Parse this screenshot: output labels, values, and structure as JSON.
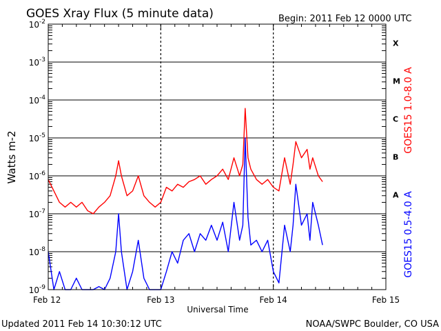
{
  "title": "GOES Xray Flux (5 minute data)",
  "begin": "Begin:  2011 Feb 12 0000 UTC",
  "updated": "Updated 2011 Feb 14 10:30:12 UTC",
  "credit": "NOAA/SWPC Boulder, CO USA",
  "colors": {
    "long_channel": "#ff0000",
    "short_channel": "#0000ff",
    "axes": "#000000"
  },
  "chart_data": {
    "type": "line",
    "title": "GOES Xray Flux (5 minute data)",
    "xlabel": "Universal Time",
    "ylabel": "Watts m-2",
    "y_scale": "log",
    "ylim": [
      1e-09,
      0.01
    ],
    "xlim": [
      "2011-02-12 00:00",
      "2011-02-15 00:00"
    ],
    "x_ticks": [
      "Feb 12",
      "Feb 13",
      "Feb 14",
      "Feb 15"
    ],
    "y_ticks": [
      {
        "base": "10",
        "exp": "-9"
      },
      {
        "base": "10",
        "exp": "-8"
      },
      {
        "base": "10",
        "exp": "-7"
      },
      {
        "base": "10",
        "exp": "-6"
      },
      {
        "base": "10",
        "exp": "-5"
      },
      {
        "base": "10",
        "exp": "-4"
      },
      {
        "base": "10",
        "exp": "-3"
      },
      {
        "base": "10",
        "exp": "-2"
      }
    ],
    "flare_classes": [
      {
        "label": "A",
        "level": 1e-07
      },
      {
        "label": "B",
        "level": 1e-06
      },
      {
        "label": "C",
        "level": 1e-05
      },
      {
        "label": "M",
        "level": 0.0001
      },
      {
        "label": "X",
        "level": 0.001
      }
    ],
    "grid": true,
    "series": [
      {
        "name": "GOES15 1.0-8.0 A",
        "color": "#ff0000",
        "x": [
          "2011-02-12 00:00",
          "2011-02-12 01:12",
          "2011-02-12 02:24",
          "2011-02-12 03:36",
          "2011-02-12 04:48",
          "2011-02-12 06:00",
          "2011-02-12 07:12",
          "2011-02-12 08:24",
          "2011-02-12 09:36",
          "2011-02-12 10:48",
          "2011-02-12 12:00",
          "2011-02-12 13:12",
          "2011-02-12 14:24",
          "2011-02-12 15:00",
          "2011-02-12 15:36",
          "2011-02-12 16:48",
          "2011-02-12 18:00",
          "2011-02-12 19:12",
          "2011-02-12 20:24",
          "2011-02-12 21:36",
          "2011-02-12 22:48",
          "2011-02-13 00:00",
          "2011-02-13 01:12",
          "2011-02-13 02:24",
          "2011-02-13 03:36",
          "2011-02-13 04:48",
          "2011-02-13 06:00",
          "2011-02-13 07:12",
          "2011-02-13 08:24",
          "2011-02-13 09:36",
          "2011-02-13 10:48",
          "2011-02-13 12:00",
          "2011-02-13 13:12",
          "2011-02-13 14:24",
          "2011-02-13 15:36",
          "2011-02-13 16:48",
          "2011-02-13 17:30",
          "2011-02-13 18:00",
          "2011-02-13 18:36",
          "2011-02-13 19:12",
          "2011-02-13 20:24",
          "2011-02-13 21:36",
          "2011-02-13 22:48",
          "2011-02-14 00:00",
          "2011-02-14 01:12",
          "2011-02-14 02:24",
          "2011-02-14 03:36",
          "2011-02-14 04:12",
          "2011-02-14 04:48",
          "2011-02-14 06:00",
          "2011-02-14 07:12",
          "2011-02-14 07:48",
          "2011-02-14 08:24",
          "2011-02-14 09:36",
          "2011-02-14 10:30"
        ],
        "y": [
          8e-07,
          4e-07,
          2e-07,
          1.5e-07,
          2e-07,
          1.5e-07,
          2e-07,
          1.2e-07,
          1e-07,
          1.5e-07,
          2e-07,
          3e-07,
          1e-06,
          2.5e-06,
          1e-06,
          3e-07,
          4e-07,
          1e-06,
          3e-07,
          2e-07,
          1.5e-07,
          2e-07,
          5e-07,
          4e-07,
          6e-07,
          5e-07,
          7e-07,
          8e-07,
          1e-06,
          6e-07,
          8e-07,
          1e-06,
          1.5e-06,
          8e-07,
          3e-06,
          1e-06,
          2e-06,
          6e-05,
          3e-06,
          1.5e-06,
          8e-07,
          6e-07,
          8e-07,
          5e-07,
          4e-07,
          3e-06,
          6e-07,
          2e-06,
          8e-06,
          3e-06,
          5e-06,
          1.5e-06,
          3e-06,
          1e-06,
          7e-07
        ]
      },
      {
        "name": "GOES15 0.5-4.0 A",
        "color": "#0000ff",
        "x": [
          "2011-02-12 00:00",
          "2011-02-12 01:12",
          "2011-02-12 02:24",
          "2011-02-12 03:36",
          "2011-02-12 04:48",
          "2011-02-12 06:00",
          "2011-02-12 07:12",
          "2011-02-12 08:24",
          "2011-02-12 09:36",
          "2011-02-12 10:48",
          "2011-02-12 12:00",
          "2011-02-12 13:12",
          "2011-02-12 14:24",
          "2011-02-12 15:00",
          "2011-02-12 15:36",
          "2011-02-12 16:48",
          "2011-02-12 18:00",
          "2011-02-12 19:12",
          "2011-02-12 20:24",
          "2011-02-12 21:36",
          "2011-02-12 22:48",
          "2011-02-13 00:00",
          "2011-02-13 01:12",
          "2011-02-13 02:24",
          "2011-02-13 03:36",
          "2011-02-13 04:48",
          "2011-02-13 06:00",
          "2011-02-13 07:12",
          "2011-02-13 08:24",
          "2011-02-13 09:36",
          "2011-02-13 10:48",
          "2011-02-13 12:00",
          "2011-02-13 13:12",
          "2011-02-13 14:24",
          "2011-02-13 15:36",
          "2011-02-13 16:48",
          "2011-02-13 17:30",
          "2011-02-13 18:00",
          "2011-02-13 18:36",
          "2011-02-13 19:12",
          "2011-02-13 20:24",
          "2011-02-13 21:36",
          "2011-02-13 22:48",
          "2011-02-14 00:00",
          "2011-02-14 01:12",
          "2011-02-14 02:24",
          "2011-02-14 03:36",
          "2011-02-14 04:12",
          "2011-02-14 04:48",
          "2011-02-14 06:00",
          "2011-02-14 07:12",
          "2011-02-14 07:48",
          "2011-02-14 08:24",
          "2011-02-14 09:36",
          "2011-02-14 10:30"
        ],
        "y": [
          1e-08,
          1e-09,
          3e-09,
          1e-09,
          1e-09,
          2e-09,
          1e-09,
          1e-09,
          1e-09,
          1.2e-09,
          1e-09,
          2e-09,
          1e-08,
          1e-07,
          1e-08,
          1e-09,
          3e-09,
          2e-08,
          2e-09,
          1e-09,
          1e-09,
          1e-09,
          3e-09,
          1e-08,
          5e-09,
          2e-08,
          3e-08,
          1e-08,
          3e-08,
          2e-08,
          5e-08,
          2e-08,
          6e-08,
          1e-08,
          2e-07,
          2e-08,
          5e-08,
          1e-05,
          8e-08,
          1.5e-08,
          2e-08,
          1e-08,
          2e-08,
          3e-09,
          1.5e-09,
          5e-08,
          1e-08,
          5e-08,
          6e-07,
          5e-08,
          1e-07,
          2e-08,
          2e-07,
          5e-08,
          1.5e-08
        ]
      }
    ]
  }
}
